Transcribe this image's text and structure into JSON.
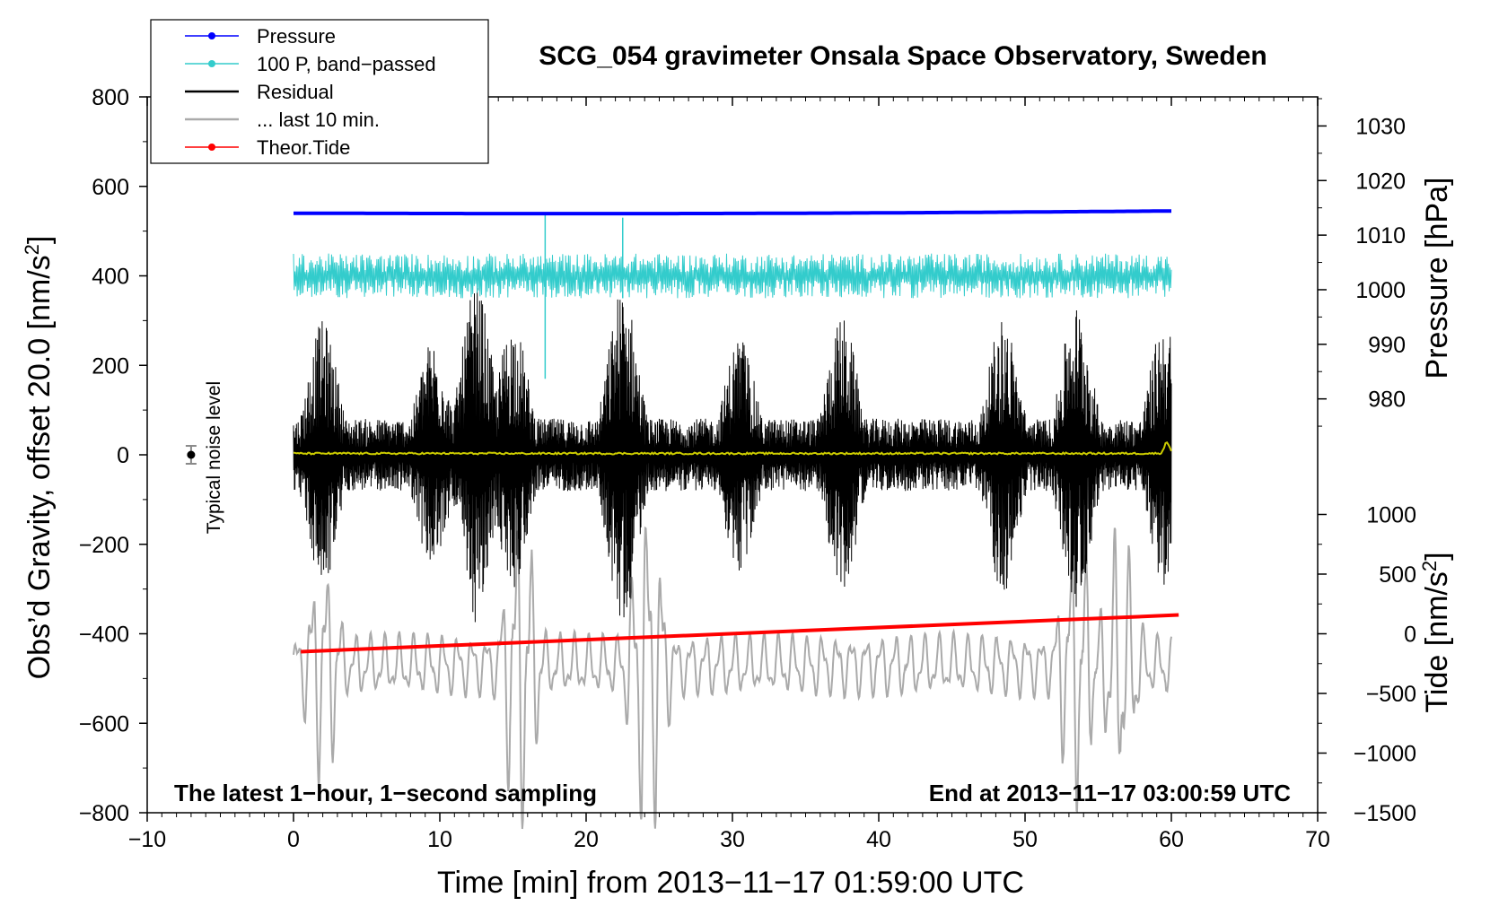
{
  "chart_data": {
    "type": "line",
    "title": "SCG_054 gravimeter Onsala Space Observatory, Sweden",
    "xlabel": "Time [min] from 2013−11−17 01:59:00 UTC",
    "ylabel_left": "Obs’d Gravity, offset 20.0 [nm/s²]",
    "ylabel_left_main": "Obs’d Gravity, offset 20.0 [nm/s",
    "ylabel_right_pressure": "Pressure [hPa]",
    "ylabel_right_tide_main": "Tide [nm/s",
    "unit_superscript": "2",
    "bracket_close": "]",
    "xlim": [
      -10,
      70
    ],
    "ylim": [
      -800,
      800
    ],
    "x_ticks": [
      -10,
      0,
      10,
      20,
      30,
      40,
      50,
      60,
      70
    ],
    "x_tick_labels": [
      "−10",
      "0",
      "10",
      "20",
      "30",
      "40",
      "50",
      "60",
      "70"
    ],
    "y_ticks": [
      800,
      600,
      400,
      200,
      0,
      -200,
      -400,
      -600,
      -800
    ],
    "y_tick_labels": [
      "800",
      "600",
      "400",
      "200",
      "0",
      "−200",
      "−400",
      "−600",
      "−800"
    ],
    "pressure_axis": {
      "ticks": [
        1030,
        1020,
        1010,
        1000,
        990,
        980
      ],
      "labels": [
        "1030",
        "1020",
        "1010",
        "1000",
        "990",
        "980"
      ],
      "gravity_at_1030": 735,
      "gravity_per_hpa": 12.2
    },
    "tide_axis": {
      "ticks": [
        1000,
        500,
        0,
        -500,
        -1000,
        -1500
      ],
      "labels": [
        "1000",
        "500",
        "0",
        "−500",
        "−1000",
        "−1500"
      ],
      "gravity_at_0": -400,
      "gravity_per_unit": 0.2667
    },
    "annotation_left": "The latest 1−hour, 1−second sampling",
    "annotation_right": "End at 2013−11−17 03:00:59 UTC",
    "noise_label": "Typical noise level",
    "noise_marker": {
      "x": -7,
      "y": 0,
      "error": 20
    },
    "legend": [
      {
        "label": "Pressure",
        "color": "#0000ff",
        "marker": true
      },
      {
        "label": "100 P, band−passed",
        "color": "#33cccc",
        "marker": true
      },
      {
        "label": "Residual",
        "color": "#000000",
        "marker": false
      },
      {
        "label": "... last 10 min.",
        "color": "#aaaaaa",
        "marker": false
      },
      {
        "label": "Theor.Tide",
        "color": "#ff0000",
        "marker": true
      }
    ],
    "series": [
      {
        "name": "Pressure",
        "color": "#0000ff",
        "x_range": [
          0,
          60
        ],
        "start": 540,
        "end": 545,
        "dip": 537,
        "note": "nearly flat line near gravity value 540"
      },
      {
        "name": "100 P, band−passed",
        "color": "#33cccc",
        "x_range": [
          0,
          60
        ],
        "center": 400,
        "amplitude": 50,
        "spikes": [
          {
            "x": 17.2,
            "min": 170,
            "max": 540
          },
          {
            "x": 22.5,
            "min": 350,
            "max": 530
          }
        ]
      },
      {
        "name": "Residual",
        "color": "#000000",
        "x_range": [
          0,
          60
        ],
        "center": 0,
        "amplitude": 180,
        "bursts": [
          {
            "x": 2,
            "amp": 300
          },
          {
            "x": 9.5,
            "amp": 260
          },
          {
            "x": 12.5,
            "amp": 380
          },
          {
            "x": 15,
            "amp": 300
          },
          {
            "x": 22.5,
            "amp": 380
          },
          {
            "x": 30.5,
            "amp": 270
          },
          {
            "x": 37.5,
            "amp": 310
          },
          {
            "x": 48.5,
            "amp": 310
          },
          {
            "x": 53.5,
            "amp": 340
          },
          {
            "x": 59.5,
            "amp": 300
          }
        ]
      },
      {
        "name": "... last 10 min.",
        "color": "#aaaaaa",
        "x_range": [
          0,
          60
        ],
        "center": -470,
        "amplitude": 150,
        "bursts": [
          {
            "x": 2,
            "amp": 260
          },
          {
            "x": 15.5,
            "amp": 360
          },
          {
            "x": 24.2,
            "amp": 390
          },
          {
            "x": 53.5,
            "amp": 320
          },
          {
            "x": 56.5,
            "amp": 300
          }
        ]
      },
      {
        "name": "Theor.Tide",
        "color": "#ff0000",
        "x": [
          0.5,
          60.5
        ],
        "y": [
          -440,
          -358
        ]
      },
      {
        "name": "Smoothed residual",
        "color": "#cccc00",
        "x_range": [
          0,
          60
        ],
        "center": 3,
        "bump": {
          "x": 59.7,
          "y": 28
        }
      }
    ]
  }
}
